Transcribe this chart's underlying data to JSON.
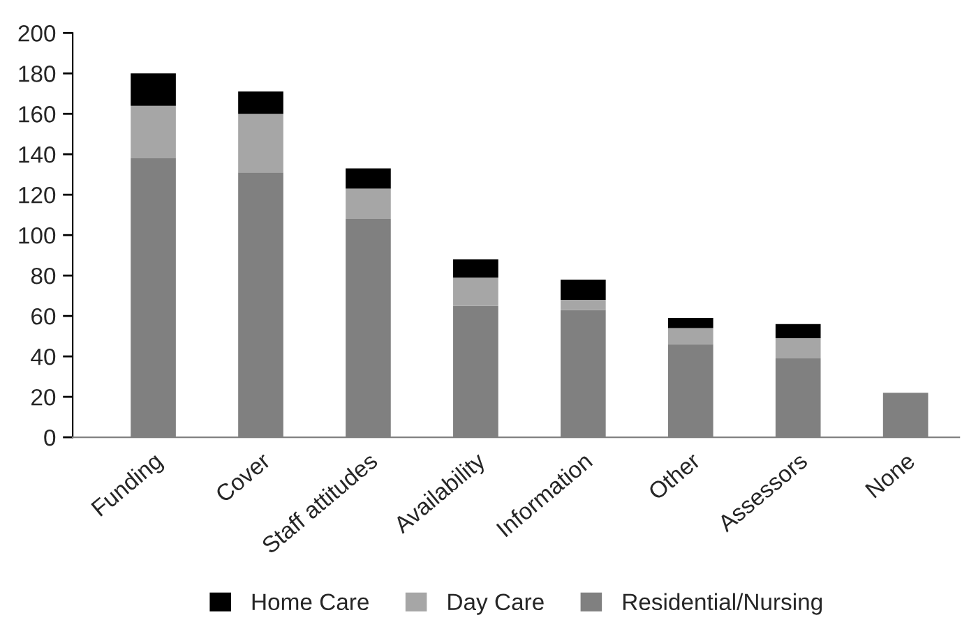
{
  "chart_data": {
    "type": "bar",
    "stacked": true,
    "categories": [
      "Funding",
      "Cover",
      "Staff attitudes",
      "Availability",
      "Information",
      "Other",
      "Assessors",
      "None"
    ],
    "series": [
      {
        "name": "Residential/Nursing",
        "color": "#808080",
        "values": [
          138,
          131,
          108,
          65,
          63,
          46,
          39,
          22
        ]
      },
      {
        "name": "Day Care",
        "color": "#a6a6a6",
        "values": [
          26,
          29,
          15,
          14,
          5,
          8,
          10,
          0
        ]
      },
      {
        "name": "Home Care",
        "color": "#000000",
        "values": [
          16,
          11,
          10,
          9,
          10,
          5,
          7,
          0
        ]
      }
    ],
    "ylim": [
      0,
      200
    ],
    "yticks": [
      0,
      20,
      40,
      60,
      80,
      100,
      120,
      140,
      160,
      180,
      200
    ],
    "grid": false,
    "legend": "bottom"
  }
}
